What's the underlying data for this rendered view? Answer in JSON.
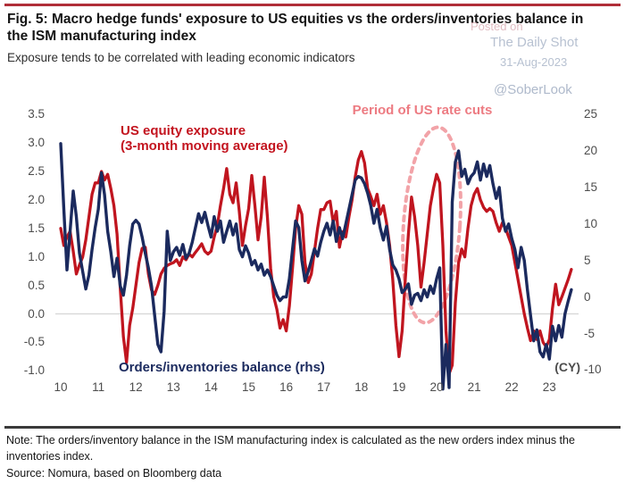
{
  "header": {
    "title_line1": "Fig. 5: Macro hedge funds' exposure to US equities vs the orders/inventories balance in",
    "title_line2": "the ISM manufacturing index",
    "subtitle": "Exposure tends to be correlated with leading economic indicators"
  },
  "watermark": {
    "posted_on": "Posted on",
    "brand": "The Daily Shot",
    "date": "31-Aug-2023",
    "handle": "@SoberLook"
  },
  "footer": {
    "note_line1": "Note: The orders/inventory balance in the ISM manufacturing index is calculated as the new orders index minus the",
    "note_line2": "inventories index.",
    "source": "Source: Nomura, based on Bloomberg data"
  },
  "chart_data": {
    "type": "line",
    "title": "Macro hedge funds' exposure to US equities vs ISM orders/inventories balance",
    "x_axis": {
      "unit_label": "(CY)",
      "tick_labels": [
        "10",
        "11",
        "12",
        "13",
        "14",
        "15",
        "16",
        "17",
        "18",
        "19",
        "20",
        "21",
        "22",
        "23"
      ],
      "range": [
        9.9,
        23.75
      ],
      "frequency": "monthly",
      "x_start_year": 10.0,
      "x_step_years": 0.0833333
    },
    "y_left_axis": {
      "tick_labels": [
        "3.5",
        "3.0",
        "2.5",
        "2.0",
        "1.5",
        "1.0",
        "0.5",
        "0.0",
        "-0.5",
        "-1.0"
      ],
      "tick_values": [
        3.5,
        3.0,
        2.5,
        2.0,
        1.5,
        1.0,
        0.5,
        0.0,
        -0.5,
        -1.0
      ],
      "range": [
        -1.0,
        3.5
      ],
      "zero_gridline": 0.0
    },
    "y_right_axis": {
      "tick_labels": [
        "25",
        "20",
        "15",
        "10",
        "5",
        "0",
        "-5",
        "-10"
      ],
      "tick_values": [
        25,
        20,
        15,
        10,
        5,
        0,
        -5,
        -10
      ],
      "range": [
        -10,
        25
      ]
    },
    "grid": "zero line only",
    "legend_position": "in-plot text labels",
    "series": [
      {
        "name": "US equity exposure (3-month moving average)",
        "label_line1": "US equity exposure",
        "label_line2": "(3-month moving average)",
        "axis": "left",
        "color": "#c0151f",
        "values": [
          1.5,
          1.2,
          1.35,
          1.45,
          1.1,
          0.7,
          0.86,
          1.0,
          1.3,
          1.7,
          2.1,
          2.3,
          2.3,
          2.5,
          2.35,
          2.45,
          2.2,
          1.9,
          1.4,
          0.45,
          -0.4,
          -0.85,
          -0.2,
          0.1,
          0.5,
          0.9,
          1.15,
          1.17,
          0.7,
          0.42,
          0.34,
          0.5,
          0.7,
          0.8,
          0.85,
          0.88,
          0.9,
          0.95,
          0.85,
          1.0,
          0.95,
          1.05,
          1.0,
          1.08,
          1.15,
          1.23,
          1.1,
          1.05,
          1.1,
          1.35,
          1.55,
          1.9,
          2.2,
          2.55,
          2.1,
          1.95,
          2.3,
          1.8,
          1.2,
          1.55,
          1.85,
          2.43,
          1.9,
          1.3,
          1.7,
          2.4,
          1.7,
          0.8,
          0.3,
          0.08,
          -0.25,
          -0.1,
          -0.3,
          0.14,
          0.8,
          1.5,
          1.9,
          1.75,
          0.9,
          0.55,
          0.7,
          1.1,
          1.5,
          1.83,
          1.83,
          1.95,
          1.98,
          1.6,
          1.8,
          1.17,
          1.44,
          1.35,
          1.7,
          2.0,
          2.4,
          2.7,
          2.85,
          2.65,
          2.2,
          2.06,
          1.9,
          2.1,
          1.75,
          1.9,
          1.6,
          1.2,
          0.6,
          -0.2,
          -0.75,
          -0.3,
          0.6,
          1.4,
          2.05,
          1.7,
          1.2,
          0.47,
          0.9,
          1.4,
          1.9,
          2.2,
          2.45,
          2.3,
          1.2,
          -0.3,
          -1.05,
          -0.9,
          0.2,
          0.9,
          1.14,
          1.0,
          1.5,
          1.9,
          2.1,
          2.2,
          2.0,
          1.87,
          1.8,
          1.85,
          1.8,
          1.6,
          1.45,
          1.6,
          1.5,
          1.35,
          1.2,
          0.9,
          0.6,
          0.3,
          0.0,
          -0.25,
          -0.47,
          -0.3,
          -0.45,
          -0.3,
          -0.5,
          -0.58,
          -0.45,
          0.1,
          0.52,
          0.16,
          0.3,
          0.45,
          0.6,
          0.78
        ]
      },
      {
        "name": "Orders/inventories balance (rhs)",
        "label": "Orders/inventories balance (rhs)",
        "axis": "right",
        "color": "#1b2a5e",
        "values": [
          21.0,
          12.0,
          3.7,
          9.0,
          14.5,
          11.0,
          6.0,
          3.5,
          1.1,
          3.0,
          6.5,
          9.5,
          12.0,
          17.0,
          14.0,
          9.0,
          6.2,
          2.8,
          5.3,
          1.5,
          0.25,
          3.0,
          7.0,
          10.0,
          10.5,
          10.0,
          8.2,
          6.0,
          4.0,
          1.5,
          -2.5,
          -6.5,
          -7.5,
          -2.0,
          9.0,
          5.0,
          6.2,
          6.8,
          5.7,
          7.2,
          5.3,
          6.0,
          7.5,
          9.5,
          11.4,
          10.2,
          11.6,
          9.8,
          8.2,
          11.0,
          9.0,
          10.4,
          7.5,
          9.0,
          10.4,
          8.5,
          10.0,
          6.5,
          5.5,
          7.0,
          6.0,
          4.4,
          5.0,
          3.7,
          4.5,
          3.0,
          3.7,
          2.8,
          1.5,
          0.25,
          -0.5,
          0.0,
          0.0,
          2.5,
          6.5,
          10.4,
          9.5,
          5.0,
          2.2,
          3.5,
          5.0,
          6.6,
          5.6,
          7.5,
          9.0,
          10.1,
          8.5,
          10.4,
          7.6,
          9.5,
          8.0,
          10.0,
          12.0,
          14.0,
          16.0,
          16.5,
          16.3,
          15.5,
          14.2,
          12.5,
          10.1,
          12.0,
          9.5,
          7.8,
          9.7,
          6.5,
          4.4,
          3.7,
          2.5,
          0.6,
          1.1,
          1.8,
          -1.0,
          0.25,
          0.5,
          -0.5,
          1.0,
          0.0,
          1.5,
          0.5,
          2.5,
          4.0,
          -12.6,
          -6.5,
          -12.4,
          13.0,
          18.5,
          20.0,
          16.5,
          17.5,
          15.5,
          16.5,
          17.0,
          18.5,
          16.0,
          18.2,
          16.5,
          18.0,
          15.5,
          13.5,
          15.0,
          10.8,
          9.0,
          10.0,
          8.0,
          6.5,
          4.0,
          6.8,
          5.0,
          1.0,
          -2.5,
          -6.0,
          -4.5,
          -7.5,
          -8.2,
          -6.5,
          -8.5,
          -4.0,
          -6.0,
          -3.9,
          -5.5,
          -2.3,
          -0.6,
          1.0
        ]
      }
    ],
    "annotations": {
      "rate_cuts_label": "Period of US rate cuts",
      "rate_cuts_color": "#ed7b82",
      "ellipse": {
        "x_center_year": 19.87,
        "x_radius_years": 0.75,
        "y_center_left_axis": 1.56,
        "y_radius_left_axis": 1.72,
        "stroke_color": "#f2a3a8",
        "style": "dashed"
      }
    }
  }
}
